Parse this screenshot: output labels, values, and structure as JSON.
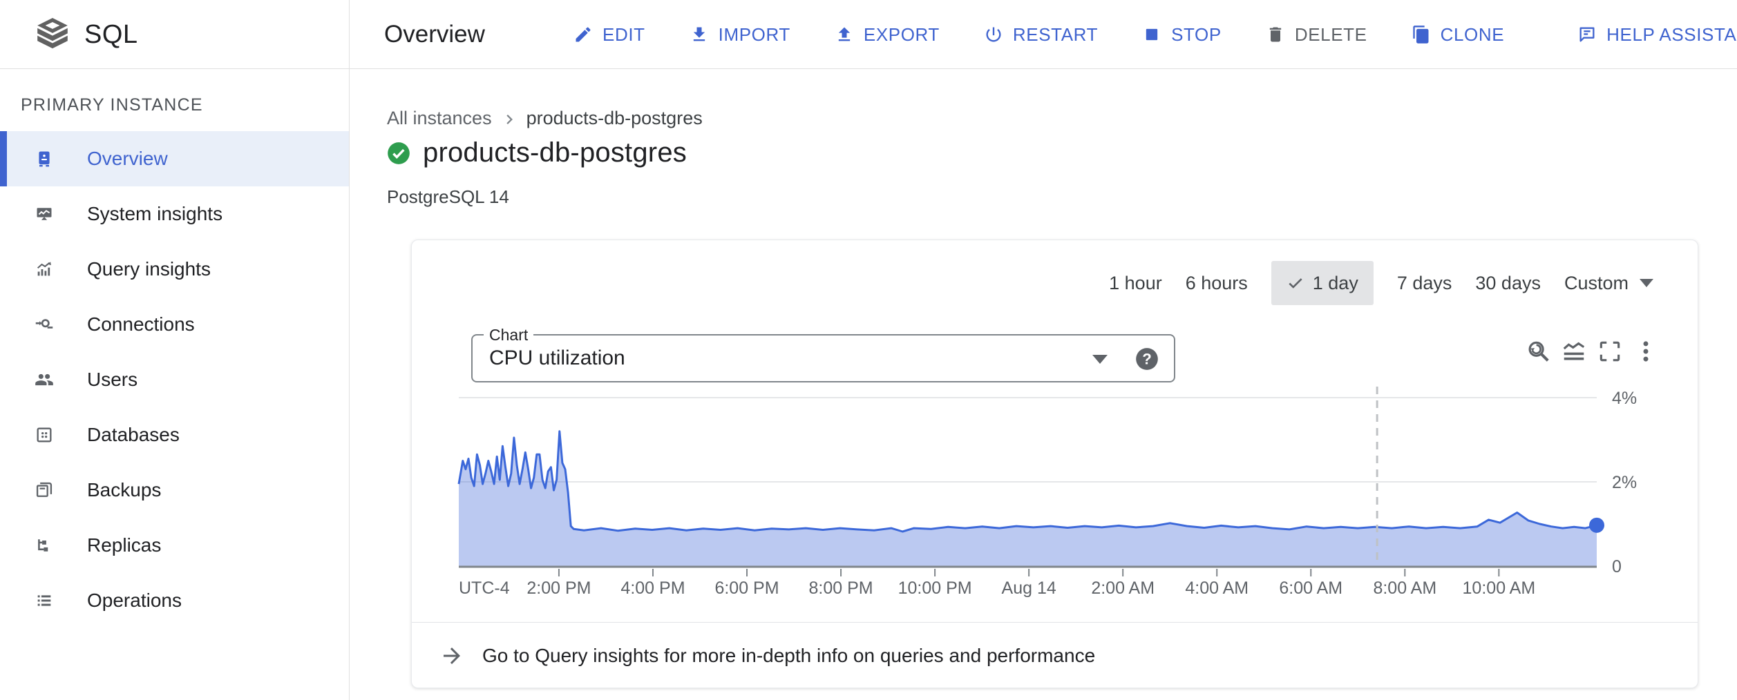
{
  "header": {
    "product": "SQL",
    "page_title": "Overview",
    "actions": [
      {
        "label": "EDIT",
        "icon": "edit",
        "style": "blue"
      },
      {
        "label": "IMPORT",
        "icon": "import",
        "style": "blue"
      },
      {
        "label": "EXPORT",
        "icon": "export",
        "style": "blue"
      },
      {
        "label": "RESTART",
        "icon": "restart",
        "style": "blue"
      },
      {
        "label": "STOP",
        "icon": "stop",
        "style": "blue"
      },
      {
        "label": "DELETE",
        "icon": "delete",
        "style": "gray"
      },
      {
        "label": "CLONE",
        "icon": "clone",
        "style": "blue"
      },
      {
        "label": "HELP ASSISTANT",
        "icon": "help-assistant",
        "style": "blue",
        "spaced": true
      }
    ]
  },
  "sidebar": {
    "section_label": "PRIMARY INSTANCE",
    "items": [
      {
        "label": "Overview",
        "icon": "overview",
        "selected": true
      },
      {
        "label": "System insights",
        "icon": "system-insights",
        "selected": false
      },
      {
        "label": "Query insights",
        "icon": "query-insights",
        "selected": false
      },
      {
        "label": "Connections",
        "icon": "connections",
        "selected": false
      },
      {
        "label": "Users",
        "icon": "users",
        "selected": false
      },
      {
        "label": "Databases",
        "icon": "databases",
        "selected": false
      },
      {
        "label": "Backups",
        "icon": "backups",
        "selected": false
      },
      {
        "label": "Replicas",
        "icon": "replicas",
        "selected": false
      },
      {
        "label": "Operations",
        "icon": "operations",
        "selected": false
      }
    ]
  },
  "breadcrumb": {
    "parent": "All instances",
    "current": "products-db-postgres"
  },
  "instance": {
    "name": "products-db-postgres",
    "engine": "PostgreSQL 14",
    "status": "running"
  },
  "time_range": {
    "options": [
      "1 hour",
      "6 hours",
      "1 day",
      "7 days",
      "30 days"
    ],
    "selected": "1 day",
    "custom_label": "Custom"
  },
  "chart_selector": {
    "label": "Chart",
    "value": "CPU utilization"
  },
  "chart_toolbar": {
    "icons": [
      "zoom-reset",
      "area-chart",
      "fullscreen",
      "more-vert"
    ]
  },
  "banner": {
    "text": "Go to Query insights for more in-depth info on queries and performance"
  },
  "colors": {
    "accent_blue": "#3f63cf",
    "text_primary": "#202124",
    "text_secondary": "#5f6368",
    "border_gray": "#e0e0e0",
    "sidebar_selected_bg": "#e9eff9",
    "chip_gray": "#e3e4e6",
    "status_green": "#2e9d4e",
    "chart_line": "#3c68d9",
    "chart_fill": "rgba(60,100,215,0.35)",
    "gridline": "#e5e6e8",
    "axis_line": "#80868b",
    "dashed_marker": "#bfc2c5"
  },
  "chart_data": {
    "type": "area",
    "title": "CPU utilization",
    "unit": "%",
    "legend": false,
    "grid": true,
    "ylim": [
      0,
      4.33
    ],
    "y_axis": {
      "position": "right",
      "ticks": [
        {
          "label": "4%",
          "value": 4
        },
        {
          "label": "2%",
          "value": 2
        },
        {
          "label": "0",
          "value": 0
        }
      ]
    },
    "x_axis": {
      "timezone_label": "UTC-4",
      "ticks": [
        {
          "label": "UTC-4",
          "t": 0.0,
          "tick": false,
          "anchor": "start"
        },
        {
          "label": "2:00 PM",
          "t": 0.088
        },
        {
          "label": "4:00 PM",
          "t": 0.1706
        },
        {
          "label": "6:00 PM",
          "t": 0.2532
        },
        {
          "label": "8:00 PM",
          "t": 0.3358
        },
        {
          "label": "10:00 PM",
          "t": 0.4184
        },
        {
          "label": "Aug 14",
          "t": 0.501
        },
        {
          "label": "2:00 AM",
          "t": 0.5836
        },
        {
          "label": "4:00 AM",
          "t": 0.6662
        },
        {
          "label": "6:00 AM",
          "t": 0.7488
        },
        {
          "label": "8:00 AM",
          "t": 0.8314
        },
        {
          "label": "10:00 AM",
          "t": 0.914
        }
      ]
    },
    "now_marker_t": 0.807,
    "end_point_dot": true,
    "series": [
      {
        "name": "CPU utilization",
        "points": [
          [
            0,
            1.95
          ],
          [
            0.0035,
            2.5
          ],
          [
            0.006,
            2.3
          ],
          [
            0.0085,
            2.55
          ],
          [
            0.011,
            2.1
          ],
          [
            0.0135,
            1.9
          ],
          [
            0.016,
            2.65
          ],
          [
            0.0185,
            2.4
          ],
          [
            0.021,
            1.95
          ],
          [
            0.0235,
            2.2
          ],
          [
            0.026,
            2.5
          ],
          [
            0.0285,
            2.25
          ],
          [
            0.031,
            1.95
          ],
          [
            0.0335,
            2.6
          ],
          [
            0.036,
            2.05
          ],
          [
            0.0385,
            2.85
          ],
          [
            0.041,
            2.35
          ],
          [
            0.0435,
            1.9
          ],
          [
            0.046,
            2.2
          ],
          [
            0.0485,
            3.05
          ],
          [
            0.051,
            2.4
          ],
          [
            0.0535,
            1.95
          ],
          [
            0.056,
            2.3
          ],
          [
            0.0585,
            2.7
          ],
          [
            0.061,
            2.3
          ],
          [
            0.0635,
            1.85
          ],
          [
            0.066,
            2.1
          ],
          [
            0.0685,
            2.65
          ],
          [
            0.071,
            2.65
          ],
          [
            0.0735,
            2.05
          ],
          [
            0.076,
            1.85
          ],
          [
            0.0785,
            2.25
          ],
          [
            0.081,
            2.35
          ],
          [
            0.0835,
            1.8
          ],
          [
            0.086,
            2.05
          ],
          [
            0.0885,
            3.2
          ],
          [
            0.091,
            2.45
          ],
          [
            0.0935,
            2.3
          ],
          [
            0.096,
            1.75
          ],
          [
            0.0985,
            0.95
          ],
          [
            0.101,
            0.88
          ],
          [
            0.11,
            0.85
          ],
          [
            0.125,
            0.9
          ],
          [
            0.14,
            0.84
          ],
          [
            0.155,
            0.89
          ],
          [
            0.17,
            0.86
          ],
          [
            0.185,
            0.9
          ],
          [
            0.2,
            0.85
          ],
          [
            0.215,
            0.89
          ],
          [
            0.23,
            0.86
          ],
          [
            0.245,
            0.9
          ],
          [
            0.26,
            0.85
          ],
          [
            0.275,
            0.89
          ],
          [
            0.29,
            0.87
          ],
          [
            0.305,
            0.9
          ],
          [
            0.32,
            0.86
          ],
          [
            0.335,
            0.9
          ],
          [
            0.35,
            0.87
          ],
          [
            0.365,
            0.85
          ],
          [
            0.38,
            0.9
          ],
          [
            0.39,
            0.82
          ],
          [
            0.4,
            0.9
          ],
          [
            0.415,
            0.88
          ],
          [
            0.43,
            0.93
          ],
          [
            0.445,
            0.9
          ],
          [
            0.46,
            0.94
          ],
          [
            0.475,
            0.9
          ],
          [
            0.49,
            0.95
          ],
          [
            0.505,
            0.92
          ],
          [
            0.52,
            0.95
          ],
          [
            0.535,
            0.91
          ],
          [
            0.55,
            0.95
          ],
          [
            0.565,
            0.92
          ],
          [
            0.58,
            0.96
          ],
          [
            0.595,
            0.92
          ],
          [
            0.61,
            0.95
          ],
          [
            0.625,
            1.02
          ],
          [
            0.64,
            0.95
          ],
          [
            0.655,
            0.91
          ],
          [
            0.67,
            0.96
          ],
          [
            0.685,
            0.92
          ],
          [
            0.7,
            0.95
          ],
          [
            0.715,
            0.9
          ],
          [
            0.73,
            0.87
          ],
          [
            0.745,
            0.94
          ],
          [
            0.76,
            0.9
          ],
          [
            0.775,
            0.93
          ],
          [
            0.79,
            0.9
          ],
          [
            0.805,
            0.93
          ],
          [
            0.82,
            0.9
          ],
          [
            0.835,
            0.94
          ],
          [
            0.85,
            0.9
          ],
          [
            0.865,
            0.93
          ],
          [
            0.88,
            0.9
          ],
          [
            0.895,
            0.94
          ],
          [
            0.905,
            1.1
          ],
          [
            0.915,
            1.03
          ],
          [
            0.93,
            1.27
          ],
          [
            0.94,
            1.08
          ],
          [
            0.95,
            1.0
          ],
          [
            0.96,
            0.94
          ],
          [
            0.97,
            0.9
          ],
          [
            0.98,
            0.93
          ],
          [
            0.99,
            0.9
          ],
          [
            1,
            0.97
          ]
        ]
      }
    ]
  }
}
